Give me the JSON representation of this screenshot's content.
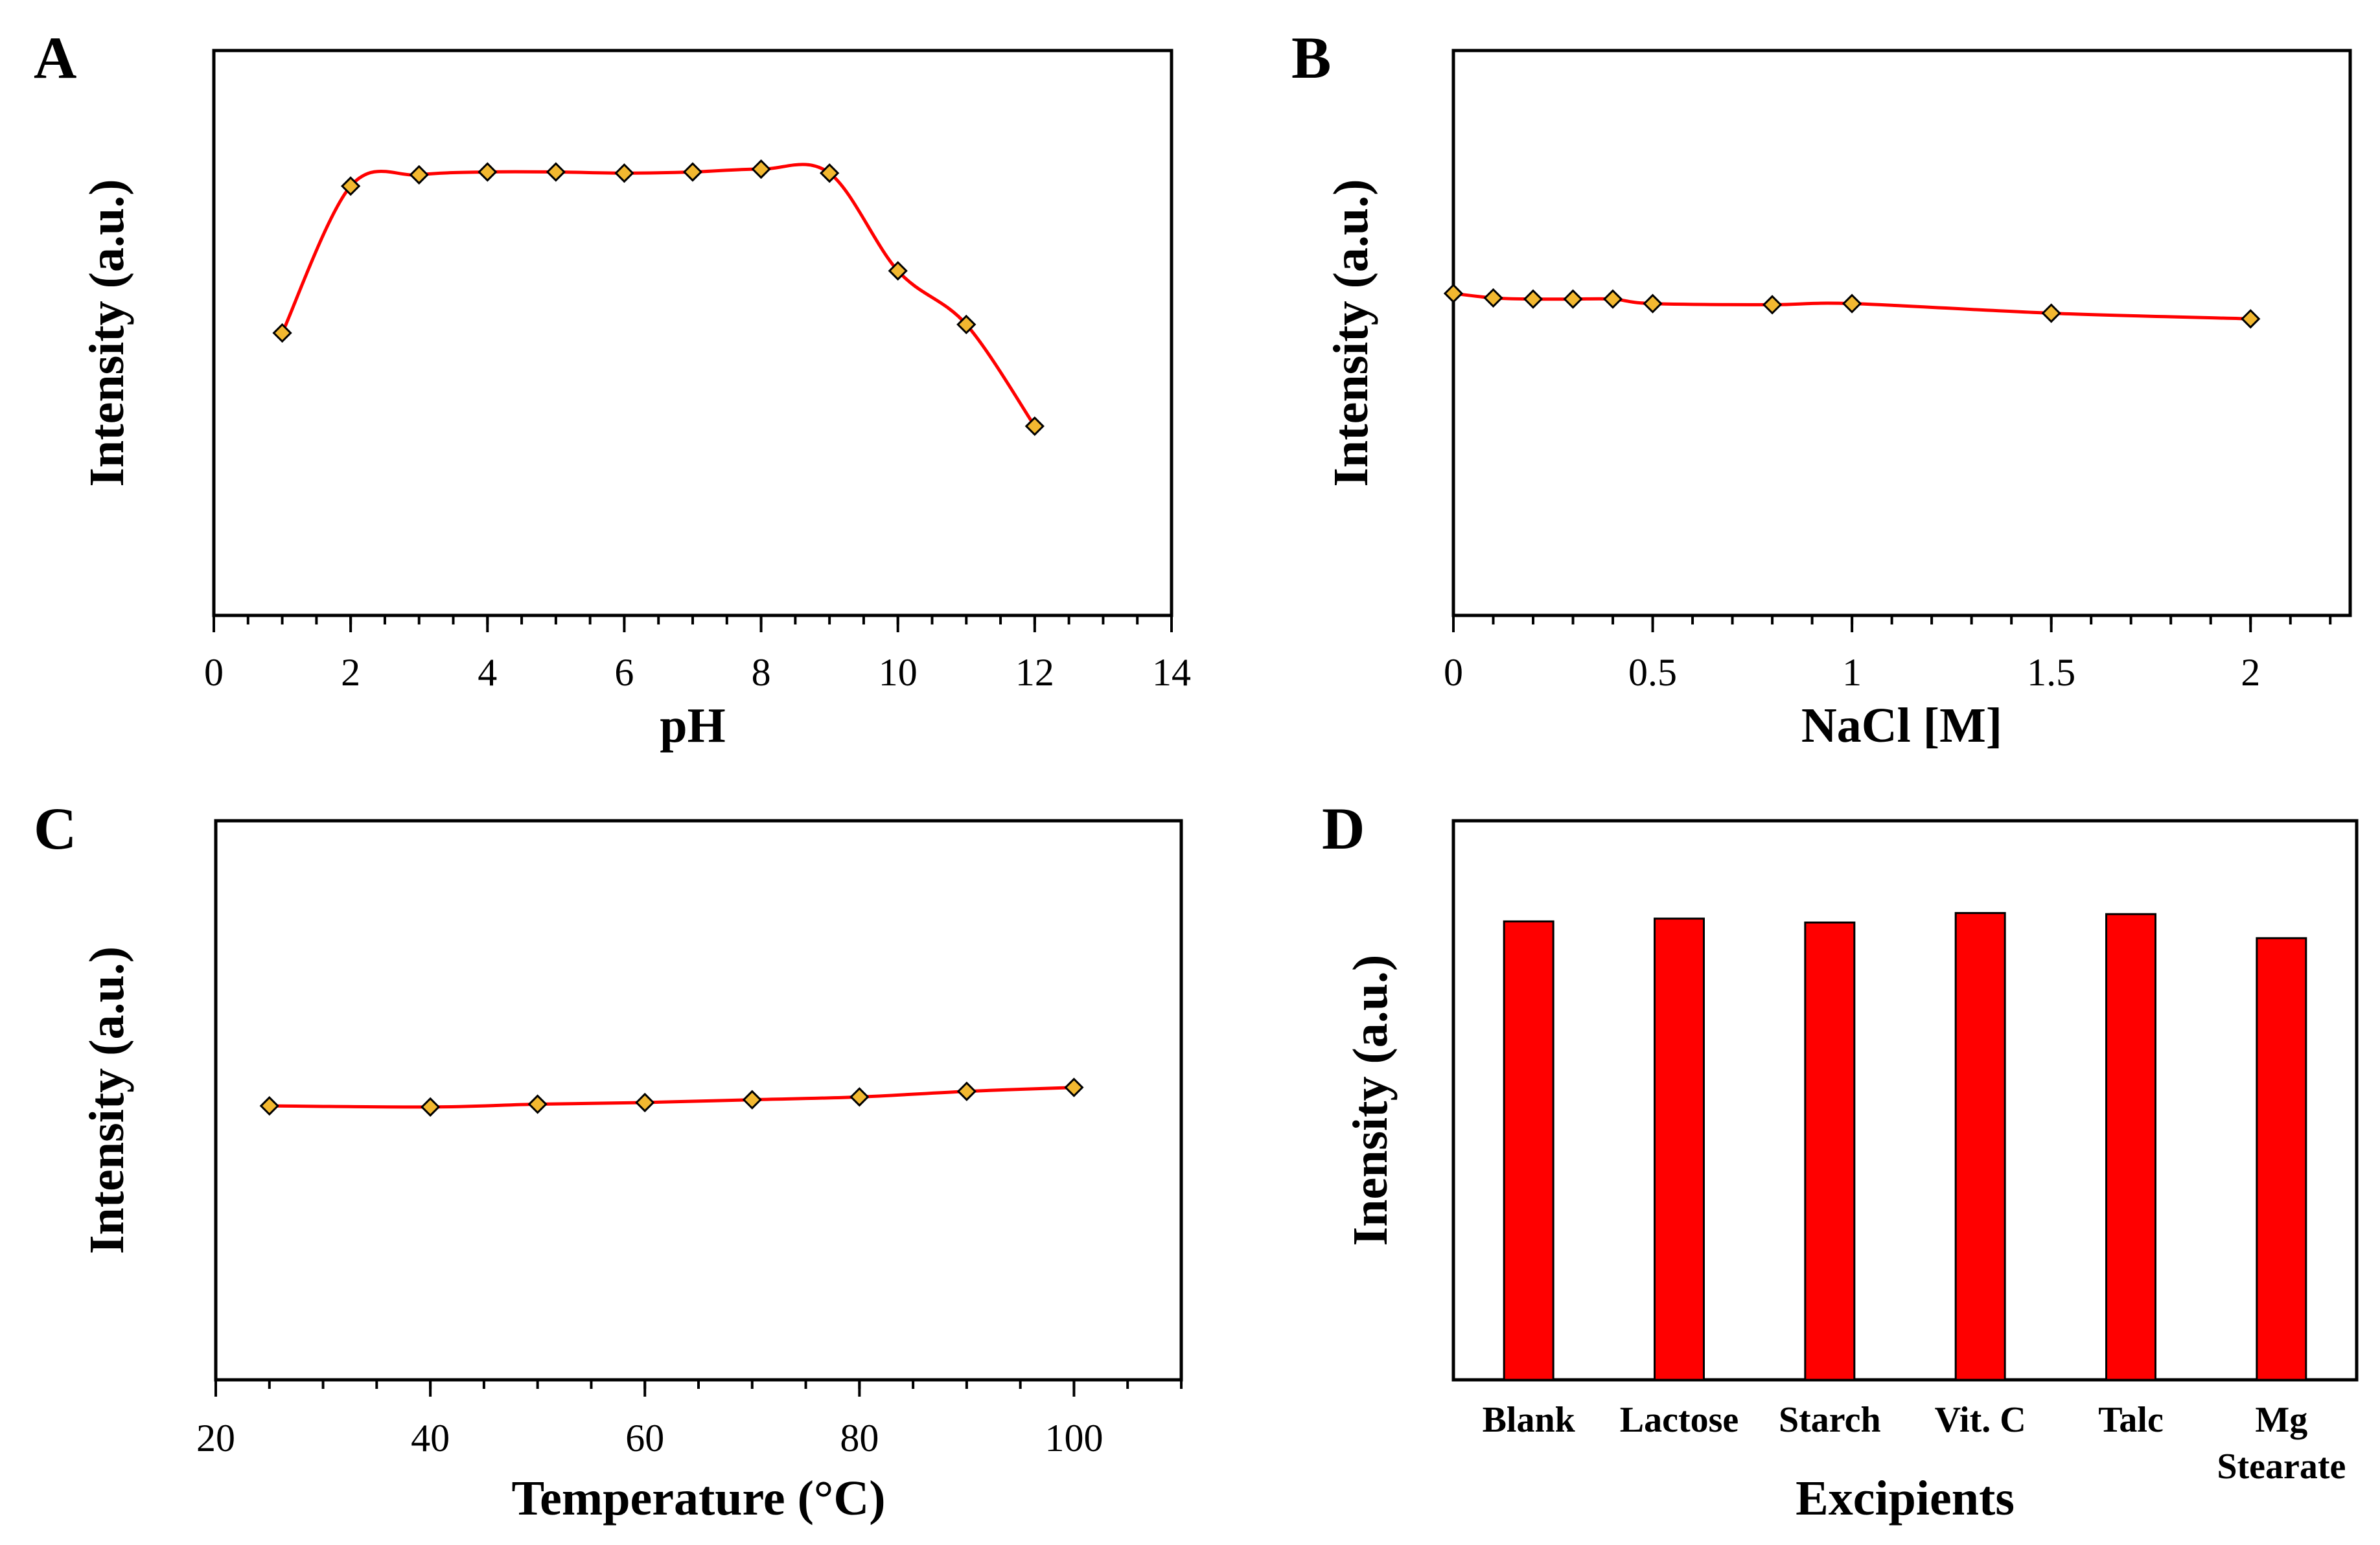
{
  "chart_data": [
    {
      "panel": "A",
      "type": "line",
      "xlabel": "pH",
      "ylabel": "Intensity (a.u.)",
      "xlim": [
        0,
        14
      ],
      "xticks": [
        "0",
        "2",
        "4",
        "6",
        "8",
        "10",
        "12",
        "14"
      ],
      "ylim": [
        0,
        100
      ],
      "x": [
        1,
        2,
        3,
        4,
        5,
        6,
        7,
        8,
        9,
        10,
        11,
        12
      ],
      "y": [
        50,
        76,
        78,
        78.5,
        78.5,
        78.3,
        78.5,
        79,
        78.3,
        61,
        51.5,
        33.5
      ],
      "colors": {
        "line": "#ff0000",
        "marker": "#f2b830",
        "marker_edge": "#000000"
      }
    },
    {
      "panel": "B",
      "type": "line",
      "xlabel": "NaCl [M]",
      "ylabel": "Intensity (a.u.)",
      "xlim": [
        0,
        2.25
      ],
      "xticks": [
        "0",
        "0.5",
        "1",
        "1.5",
        "2"
      ],
      "ylim": [
        0,
        100
      ],
      "x": [
        0,
        0.1,
        0.2,
        0.3,
        0.4,
        0.5,
        0.8,
        1.0,
        1.5,
        2.0
      ],
      "y": [
        57,
        56.2,
        56,
        56,
        56,
        55.2,
        55,
        55.2,
        53.5,
        52.5
      ],
      "colors": {
        "line": "#ff0000",
        "marker": "#f2b830",
        "marker_edge": "#000000"
      }
    },
    {
      "panel": "C",
      "type": "line",
      "xlabel": "Temperature (°C)",
      "ylabel": "Intensity (a.u.)",
      "xlim": [
        20,
        110
      ],
      "xticks": [
        "20",
        "40",
        "60",
        "80",
        "100"
      ],
      "ylim": [
        0,
        100
      ],
      "x": [
        25,
        40,
        50,
        60,
        70,
        80,
        90,
        100
      ],
      "y": [
        49,
        48.8,
        49.3,
        49.6,
        50.1,
        50.6,
        51.6,
        52.3
      ],
      "colors": {
        "line": "#ff0000",
        "marker": "#f2b830",
        "marker_edge": "#000000"
      }
    },
    {
      "panel": "D",
      "type": "bar",
      "xlabel": "Excipients",
      "ylabel": "Inensity (a.u.)",
      "ylim": [
        0,
        100
      ],
      "categories": [
        [
          "Blank"
        ],
        [
          "Lactose"
        ],
        [
          "Starch"
        ],
        [
          "Vit. C"
        ],
        [
          "Talc"
        ],
        [
          "Mg",
          "Stearate"
        ]
      ],
      "values": [
        82,
        82.5,
        81.8,
        83.5,
        83.3,
        79
      ],
      "colors": {
        "bar": "#ff0000",
        "bar_edge": "#000000"
      }
    }
  ]
}
